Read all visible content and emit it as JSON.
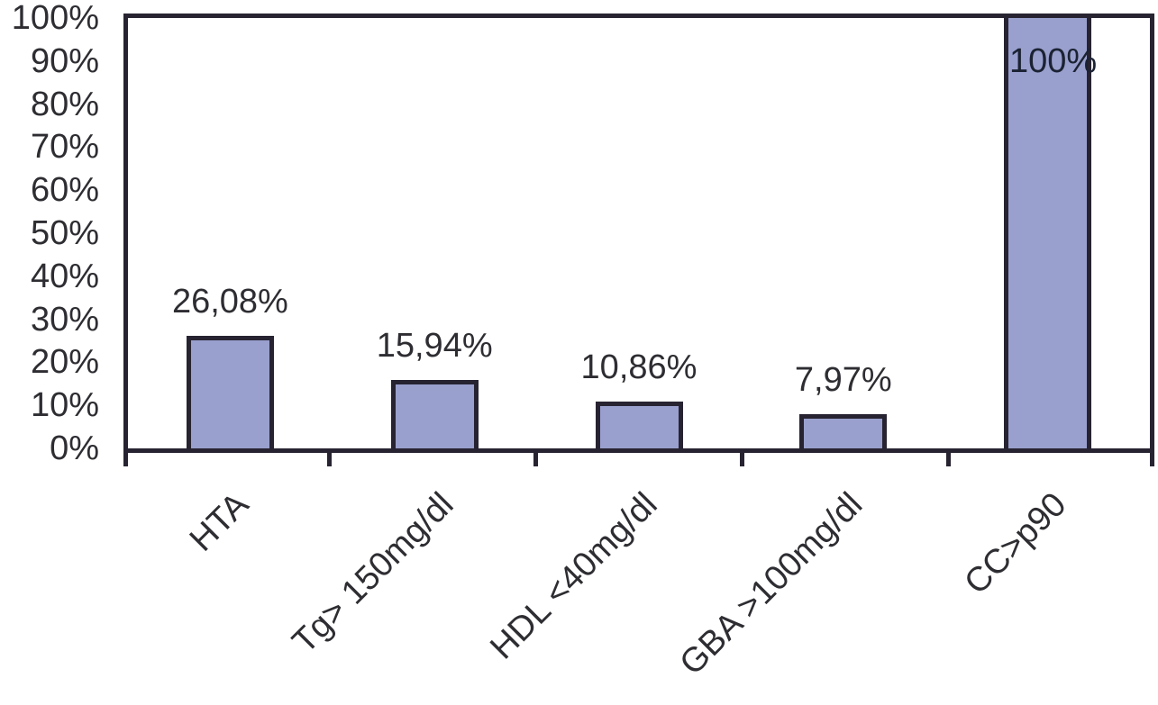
{
  "chart_data": {
    "type": "bar",
    "categories": [
      "HTA",
      "Tg> 150mg/dl",
      "HDL <40mg/dl",
      "GBA >100mg/dl",
      "CC>p90"
    ],
    "values": [
      26.08,
      15.94,
      10.86,
      7.97,
      100
    ],
    "value_labels": [
      "26,08%",
      "15,94%",
      "10,86%",
      "7,97%",
      "100%"
    ],
    "y_ticks": [
      "100%",
      "90%",
      "80%",
      "70%",
      "60%",
      "50%",
      "40%",
      "30%",
      "20%",
      "10%",
      "0%"
    ],
    "ylim": [
      0,
      100
    ],
    "grid": false,
    "legend": false,
    "xlabel": "",
    "ylabel": "",
    "x_tick_rotation_deg": 45,
    "colors": {
      "bar_fill": "#99A0CE",
      "bar_border": "#272331",
      "axis": "#272331",
      "text": "#2E2D32",
      "inner_label": "#1B2233",
      "background": "#FFFFFF"
    }
  }
}
